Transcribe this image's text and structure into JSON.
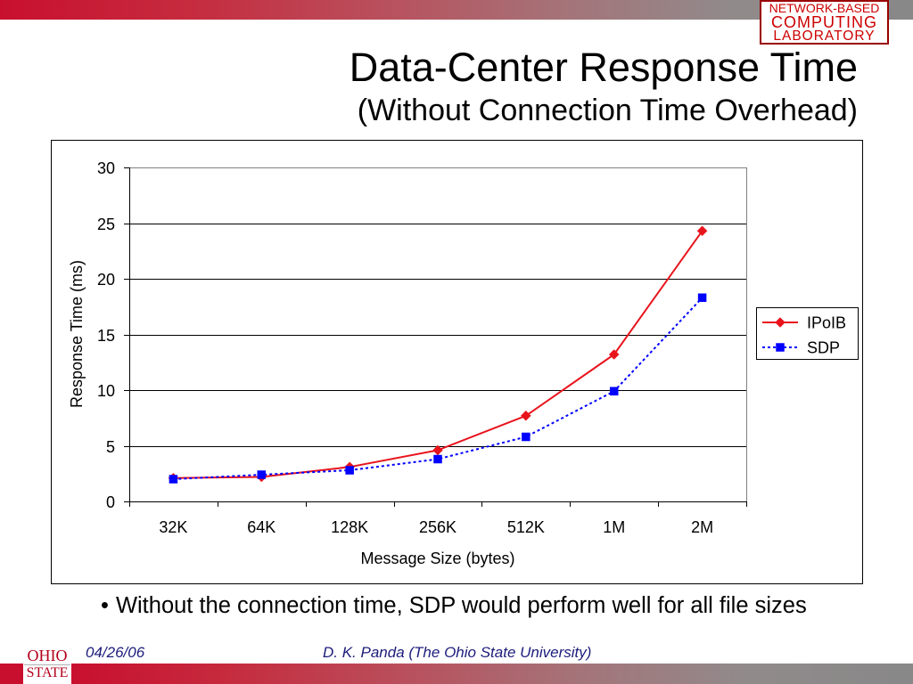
{
  "theme_colors": {
    "brand_red": "#c8102e",
    "bar_gray": "#888888",
    "footer_text": "#1c1c7c",
    "logo_red": "#cc0000"
  },
  "lab_logo": {
    "line1": "NETWORK-BASED",
    "line2": "COMPUTING",
    "line3": "LABORATORY"
  },
  "chart_data": {
    "type": "line",
    "title": "Data-Center Response Time",
    "subtitle": "(Without Connection Time Overhead)",
    "xlabel": "Message Size (bytes)",
    "ylabel": "Response Time (ms)",
    "categories": [
      "32K",
      "64K",
      "128K",
      "256K",
      "512K",
      "1M",
      "2M"
    ],
    "series": [
      {
        "name": "IPoIB",
        "values": [
          2.1,
          2.2,
          3.1,
          4.6,
          7.7,
          13.2,
          24.3
        ],
        "color": "#e8141c",
        "marker": "diamond",
        "line_style": "solid"
      },
      {
        "name": "SDP",
        "values": [
          2.0,
          2.4,
          2.8,
          3.8,
          5.8,
          9.9,
          18.3
        ],
        "color": "#0000ff",
        "marker": "square",
        "line_style": "dotted"
      }
    ],
    "ylim": [
      0,
      30
    ],
    "y_ticks": [
      0,
      5,
      10,
      15,
      20,
      25,
      30
    ],
    "grid": true,
    "legend": "right"
  },
  "bullet_point": {
    "symbol": "•",
    "text": "Without the connection time, SDP would perform well for all file sizes"
  },
  "footer": {
    "date": "04/26/06",
    "author": "D. K. Panda (The Ohio State University)",
    "university_logo": {
      "line1": "OHIO",
      "line2": "STATE"
    }
  }
}
